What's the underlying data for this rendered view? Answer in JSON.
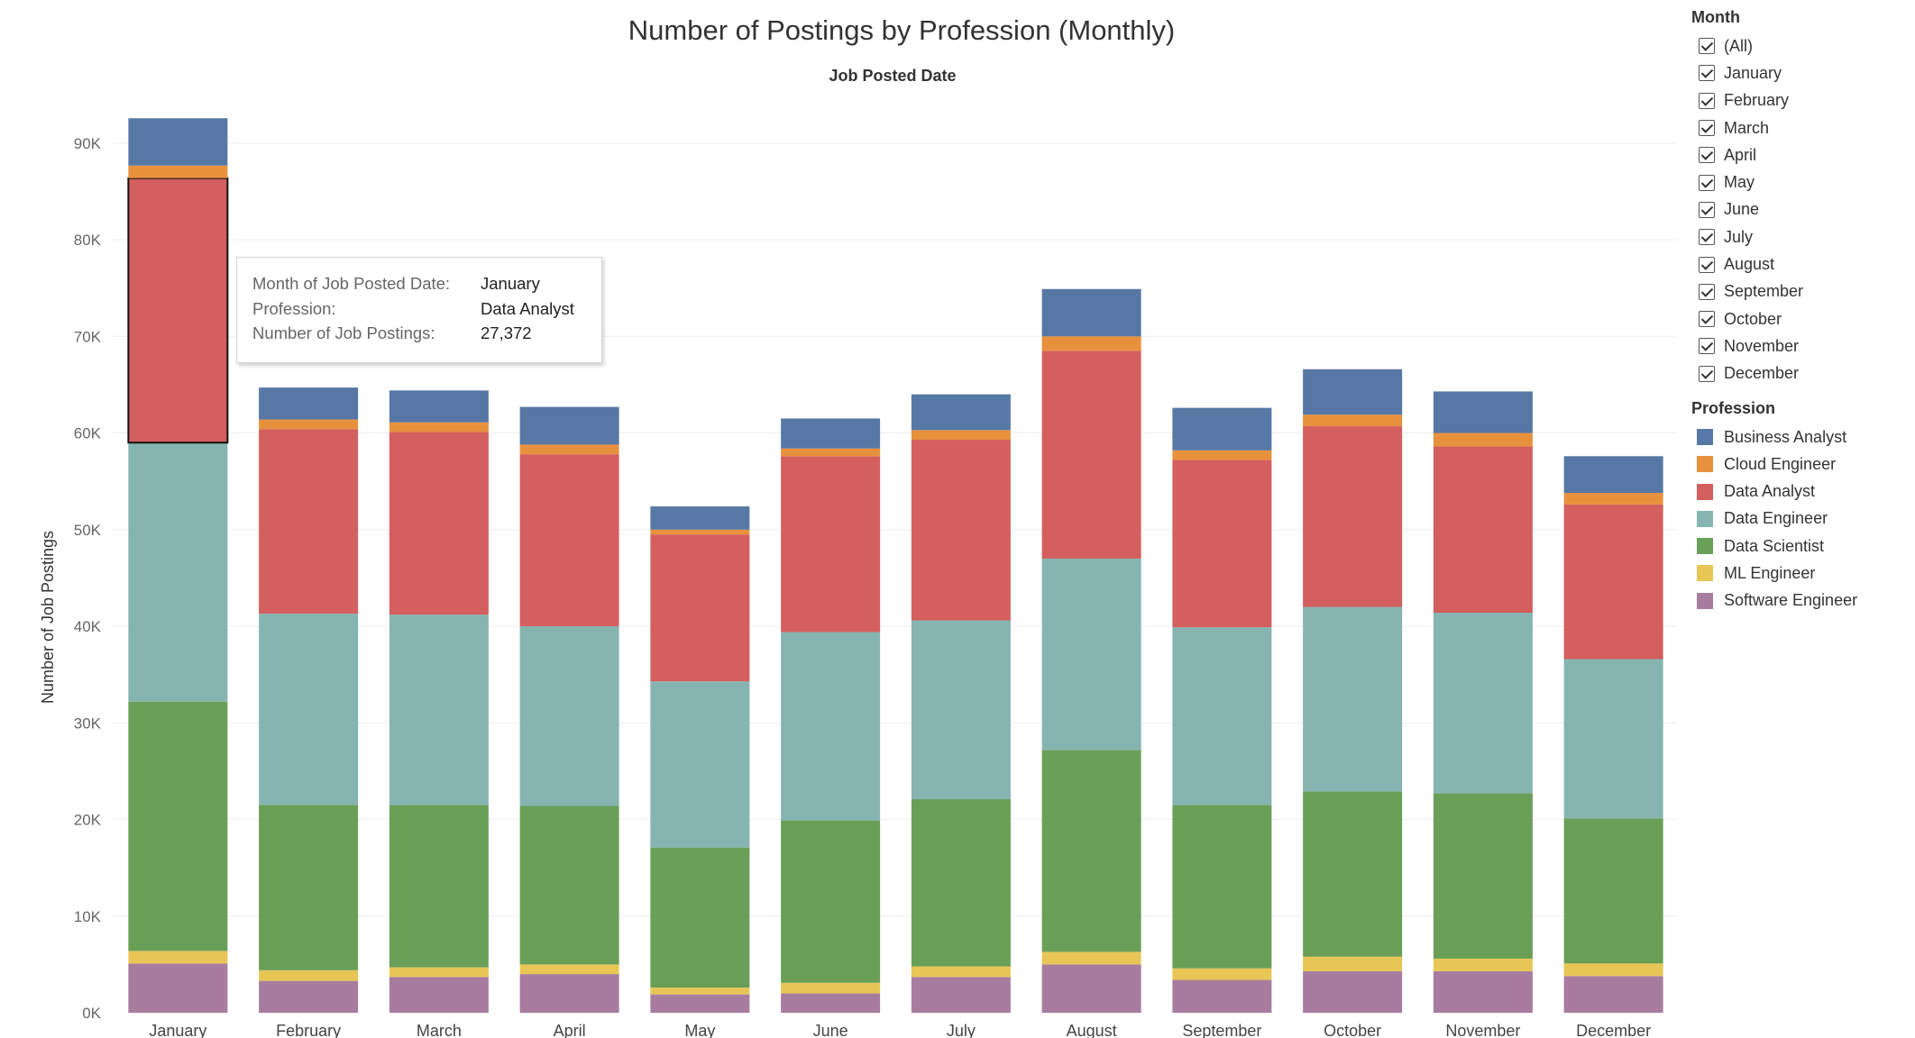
{
  "chart_data": {
    "type": "bar",
    "stacked": true,
    "title": "Number of Postings by Profession (Monthly)",
    "subtitle": "Job Posted Date",
    "xlabel": "",
    "ylabel": "Number of Job Postings",
    "ylim": [
      0,
      92500
    ],
    "yticks": [
      0,
      10000,
      20000,
      30000,
      40000,
      50000,
      60000,
      70000,
      80000,
      90000
    ],
    "ytick_labels": [
      "0K",
      "10K",
      "20K",
      "30K",
      "40K",
      "50K",
      "60K",
      "70K",
      "80K",
      "90K"
    ],
    "grid": true,
    "categories": [
      "January",
      "February",
      "March",
      "April",
      "May",
      "June",
      "July",
      "August",
      "September",
      "October",
      "November",
      "December"
    ],
    "series": [
      {
        "name": "Software Engineer",
        "color": "#a87c9f",
        "values": [
          5100,
          3300,
          3700,
          4000,
          1900,
          2000,
          3700,
          5000,
          3400,
          4300,
          4300,
          3800
        ]
      },
      {
        "name": "ML Engineer",
        "color": "#e8c656",
        "values": [
          1300,
          1100,
          1000,
          1000,
          700,
          1100,
          1100,
          1300,
          1200,
          1500,
          1300,
          1300
        ]
      },
      {
        "name": "Data Scientist",
        "color": "#6a9f58",
        "values": [
          25800,
          17100,
          16800,
          16400,
          14500,
          16800,
          17300,
          20900,
          16900,
          17100,
          17100,
          15000
        ]
      },
      {
        "name": "Data Engineer",
        "color": "#86b4b0",
        "values": [
          26800,
          19800,
          19700,
          18600,
          17200,
          19500,
          18500,
          19800,
          18400,
          19100,
          18700,
          16500
        ]
      },
      {
        "name": "Data Analyst",
        "color": "#d35f5f",
        "values": [
          27372,
          19100,
          18900,
          17800,
          15200,
          18200,
          18700,
          21500,
          17300,
          18700,
          17200,
          16000
        ]
      },
      {
        "name": "Cloud Engineer",
        "color": "#e8913d",
        "values": [
          1300,
          1000,
          1000,
          1000,
          500,
          800,
          1000,
          1500,
          1000,
          1200,
          1400,
          1200
        ]
      },
      {
        "name": "Business Analyst",
        "color": "#5778a4",
        "values": [
          4900,
          3300,
          3300,
          3900,
          2400,
          3100,
          3700,
          4900,
          4400,
          4700,
          4300,
          3800
        ]
      }
    ],
    "highlight": {
      "category": "January",
      "series": "Data Analyst"
    }
  },
  "tooltip": {
    "rows": [
      {
        "key": "Month of Job Posted Date:",
        "value": "January"
      },
      {
        "key": "Profession:",
        "value": "Data Analyst"
      },
      {
        "key": "Number of Job Postings:",
        "value": "27,372"
      }
    ]
  },
  "filter": {
    "title": "Month",
    "items": [
      {
        "label": "(All)",
        "checked": true
      },
      {
        "label": "January",
        "checked": true
      },
      {
        "label": "February",
        "checked": true
      },
      {
        "label": "March",
        "checked": true
      },
      {
        "label": "April",
        "checked": true
      },
      {
        "label": "May",
        "checked": true
      },
      {
        "label": "June",
        "checked": true
      },
      {
        "label": "July",
        "checked": true
      },
      {
        "label": "August",
        "checked": true
      },
      {
        "label": "September",
        "checked": true
      },
      {
        "label": "October",
        "checked": true
      },
      {
        "label": "November",
        "checked": true
      },
      {
        "label": "December",
        "checked": true
      }
    ]
  },
  "legend": {
    "title": "Profession",
    "items": [
      {
        "label": "Business Analyst",
        "color": "#5778a4"
      },
      {
        "label": "Cloud Engineer",
        "color": "#e8913d"
      },
      {
        "label": "Data Analyst",
        "color": "#d35f5f"
      },
      {
        "label": "Data Engineer",
        "color": "#86b4b0"
      },
      {
        "label": "Data Scientist",
        "color": "#6a9f58"
      },
      {
        "label": "ML Engineer",
        "color": "#e8c656"
      },
      {
        "label": "Software Engineer",
        "color": "#a87c9f"
      }
    ]
  }
}
